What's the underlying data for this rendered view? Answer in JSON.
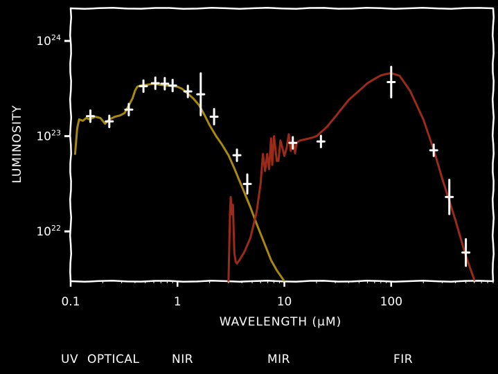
{
  "chart_data": {
    "type": "line",
    "title": "",
    "xlabel": "WAVELENGTH (μM)",
    "ylabel": "LUMINOSITY",
    "xscale": "log",
    "yscale": "log",
    "xlim": [
      0.1,
      900
    ],
    "ylim": [
      3e+21,
      2.2e+24
    ],
    "x_ticks": [
      {
        "value": 0.1,
        "label": "0.1"
      },
      {
        "value": 1,
        "label": "1"
      },
      {
        "value": 10,
        "label": "10"
      },
      {
        "value": 100,
        "label": "100"
      }
    ],
    "y_ticks": [
      {
        "value": 1e+22,
        "base": "10",
        "exp": "22"
      },
      {
        "value": 1e+23,
        "base": "10",
        "exp": "23"
      },
      {
        "value": 1e+24,
        "base": "10",
        "exp": "24"
      }
    ],
    "grid": false,
    "legend": "none",
    "band_labels": [
      "UV",
      "OPTICAL",
      "NIR",
      "MIR",
      "FIR"
    ],
    "colors": {
      "background": "#000000",
      "foreground": "#ffffff",
      "stellar": "#a8880e",
      "dust": "#9c2a18",
      "points": "#ffffff"
    },
    "series": [
      {
        "kind": "stellar-template",
        "x": [
          0.11,
          0.115,
          0.12,
          0.13,
          0.14,
          0.15,
          0.17,
          0.19,
          0.21,
          0.23,
          0.26,
          0.29,
          0.32,
          0.35,
          0.38,
          0.4,
          0.42,
          0.45,
          0.5,
          0.55,
          0.6,
          0.65,
          0.7,
          0.8,
          0.9,
          1.0,
          1.1,
          1.2,
          1.4,
          1.6,
          1.8,
          2.0,
          2.3,
          2.6,
          3.0,
          3.4,
          3.8,
          4.2,
          4.8,
          5.5,
          6.5,
          7.5,
          8.5,
          10.0
        ],
        "y": [
          6.5e+22,
          1.2e+23,
          1.5e+23,
          1.45e+23,
          1.55e+23,
          1.5e+23,
          1.6e+23,
          1.55e+23,
          1.35e+23,
          1.5e+23,
          1.6e+23,
          1.65e+23,
          1.75e+23,
          2.1e+23,
          2.5e+23,
          3e+23,
          3.3e+23,
          3.4e+23,
          3.45e+23,
          3.5e+23,
          3.55e+23,
          3.5e+23,
          3.45e+23,
          3.4e+23,
          3.35e+23,
          3.3e+23,
          3.15e+23,
          2.9e+23,
          2.5e+23,
          2.1e+23,
          1.65e+23,
          1.3e+23,
          1e+23,
          8.2e+22,
          6.3e+22,
          4.6e+22,
          3.4e+22,
          2.6e+22,
          1.8e+22,
          1.2e+22,
          7.5e+21,
          5e+21,
          3.9e+21,
          3e+21
        ]
      },
      {
        "kind": "dust-model",
        "x": [
          3.0,
          3.1,
          3.15,
          3.25,
          3.3,
          3.4,
          3.5,
          3.6,
          3.8,
          4.2,
          4.8,
          5.5,
          6.0,
          6.3,
          6.6,
          6.9,
          7.2,
          7.5,
          7.7,
          8.0,
          8.5,
          8.8,
          9.2,
          9.6,
          10.0,
          10.5,
          11.0,
          11.5,
          12.0,
          12.6,
          13.0,
          14.0,
          16.0,
          18.0,
          20.0,
          25.0,
          30.0,
          40.0,
          50.0,
          60.0,
          70.0,
          80.0,
          90.0,
          100.0,
          120.0,
          150.0,
          200.0,
          250.0,
          300.0,
          400.0,
          500.0,
          600.0
        ],
        "y": [
          3e+21,
          1.6e+22,
          2.3e+22,
          1.5e+22,
          1.9e+22,
          6e+21,
          4.8e+21,
          4.6e+21,
          5e+21,
          6e+21,
          8.5e+21,
          1.6e+22,
          3.2e+22,
          6.5e+22,
          4.3e+22,
          6.5e+22,
          4.5e+22,
          9.5e+22,
          5e+22,
          1e+23,
          5.5e+22,
          5.5e+22,
          9e+22,
          7.5e+22,
          6.2e+22,
          7.5e+22,
          1.05e+23,
          7e+22,
          9e+22,
          6.6e+22,
          8.5e+22,
          9e+22,
          9.3e+22,
          9.6e+22,
          1e+23,
          1.25e+23,
          1.6e+23,
          2.4e+23,
          3e+23,
          3.6e+23,
          4e+23,
          4.35e+23,
          4.5e+23,
          4.6e+23,
          4.3e+23,
          3e+23,
          1.5e+23,
          7.2e+22,
          3.6e+22,
          1.3e+22,
          5.5e+21,
          3.1e+21
        ]
      },
      {
        "kind": "observations",
        "points": [
          {
            "x": 0.153,
            "y": 1.62e+23,
            "err": 0.06
          },
          {
            "x": 0.23,
            "y": 1.43e+23,
            "err": 0.06
          },
          {
            "x": 0.35,
            "y": 1.9e+23,
            "err": 0.06
          },
          {
            "x": 0.48,
            "y": 3.35e+23,
            "err": 0.06
          },
          {
            "x": 0.62,
            "y": 3.6e+23,
            "err": 0.06
          },
          {
            "x": 0.76,
            "y": 3.55e+23,
            "err": 0.06
          },
          {
            "x": 0.9,
            "y": 3.4e+23,
            "err": 0.06
          },
          {
            "x": 1.25,
            "y": 2.95e+23,
            "err": 0.06
          },
          {
            "x": 1.65,
            "y": 2.75e+23,
            "err": 0.22
          },
          {
            "x": 2.2,
            "y": 1.6e+23,
            "err": 0.08
          },
          {
            "x": 3.6,
            "y": 6.3e+22,
            "err": 0.06
          },
          {
            "x": 4.5,
            "y": 3.15e+22,
            "err": 0.1
          },
          {
            "x": 12.0,
            "y": 8.5e+22,
            "err": 0.06
          },
          {
            "x": 22.0,
            "y": 8.8e+22,
            "err": 0.06
          },
          {
            "x": 100.0,
            "y": 3.7e+23,
            "err": 0.16
          },
          {
            "x": 250.0,
            "y": 7.1e+22,
            "err": 0.06
          },
          {
            "x": 350.0,
            "y": 2.3e+22,
            "err": 0.18
          },
          {
            "x": 500.0,
            "y": 6e+21,
            "err": 0.14
          }
        ]
      }
    ]
  }
}
